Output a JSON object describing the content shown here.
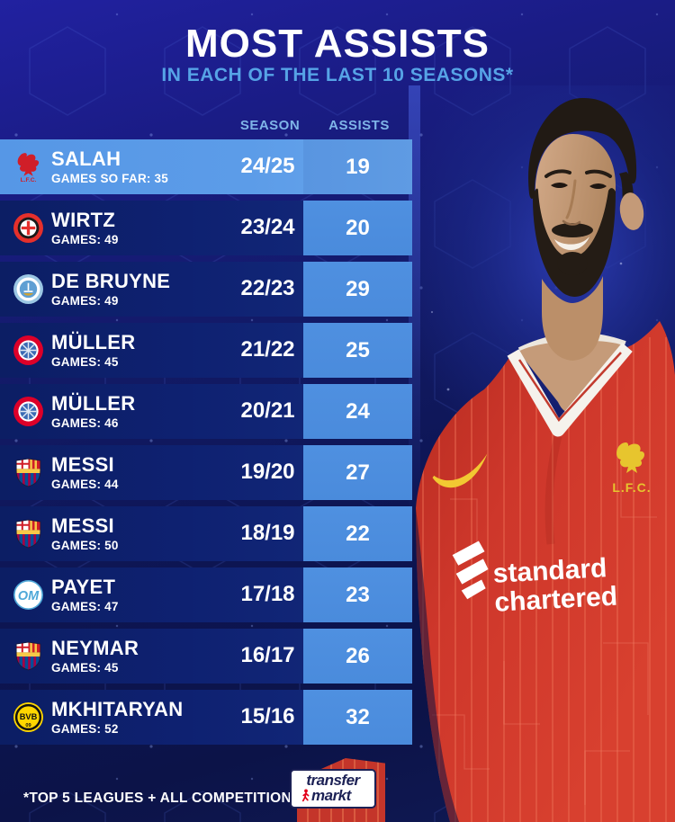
{
  "title": "MOST ASSISTS",
  "subtitle": "IN EACH OF THE LAST 10 SEASONS*",
  "columns": {
    "season": "SEASON",
    "assists": "ASSISTS"
  },
  "table": {
    "rows": [
      {
        "player": "SALAH",
        "games": "GAMES SO FAR: 35",
        "season": "24/25",
        "assists": "19",
        "club": "liverpool",
        "badge": "liverpool-crest-icon",
        "highlight": true
      },
      {
        "player": "WIRTZ",
        "games": "GAMES: 49",
        "season": "23/24",
        "assists": "20",
        "club": "leverkusen",
        "badge": "leverkusen-crest-icon",
        "highlight": false
      },
      {
        "player": "DE BRUYNE",
        "games": "GAMES: 49",
        "season": "22/23",
        "assists": "29",
        "club": "mancity",
        "badge": "manchester-city-crest-icon",
        "highlight": false
      },
      {
        "player": "MÜLLER",
        "games": "GAMES: 45",
        "season": "21/22",
        "assists": "25",
        "club": "bayern",
        "badge": "bayern-munich-crest-icon",
        "highlight": false
      },
      {
        "player": "MÜLLER",
        "games": "GAMES: 46",
        "season": "20/21",
        "assists": "24",
        "club": "bayern",
        "badge": "bayern-munich-crest-icon",
        "highlight": false
      },
      {
        "player": "MESSI",
        "games": "GAMES: 44",
        "season": "19/20",
        "assists": "27",
        "club": "barcelona",
        "badge": "barcelona-crest-icon",
        "highlight": false
      },
      {
        "player": "MESSI",
        "games": "GAMES: 50",
        "season": "18/19",
        "assists": "22",
        "club": "barcelona",
        "badge": "barcelona-crest-icon",
        "highlight": false
      },
      {
        "player": "PAYET",
        "games": "GAMES: 47",
        "season": "17/18",
        "assists": "23",
        "club": "marseille",
        "badge": "marseille-crest-icon",
        "highlight": false
      },
      {
        "player": "NEYMAR",
        "games": "GAMES: 45",
        "season": "16/17",
        "assists": "26",
        "club": "barcelona",
        "badge": "barcelona-crest-icon",
        "highlight": false
      },
      {
        "player": "MKHITARYAN",
        "games": "GAMES: 52",
        "season": "15/16",
        "assists": "32",
        "club": "dortmund",
        "badge": "borussia-dortmund-crest-icon",
        "highlight": false
      }
    ]
  },
  "badges": {
    "liverpool": {
      "label": "L.F.C."
    },
    "marseille": {
      "label": "OM"
    },
    "dortmund": {
      "label": "BVB",
      "sub": "09"
    }
  },
  "photo": {
    "sponsor_line1": "standard",
    "sponsor_line2": "chartered",
    "crest_label": "L.F.C."
  },
  "footer": {
    "footnote": "*TOP 5 LEAGUES + ALL COMPETITIONS",
    "brand_line1": "transfer",
    "brand_line2": "markt"
  },
  "colors": {
    "highlight_row": "#5c9ce8",
    "row": "#0e2171",
    "assist_cell": "#4a8bdc",
    "accent": "#56a3e6",
    "jersey_red": "#ce372b",
    "brand_red": "#e2001a",
    "navy": "#1c2155",
    "badge_yellow": "#e7c52e"
  }
}
